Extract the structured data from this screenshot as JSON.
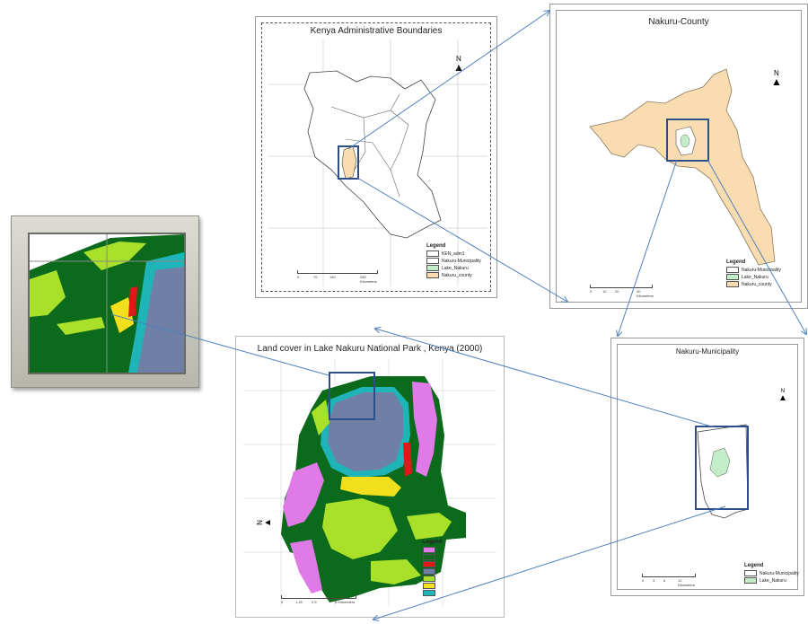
{
  "kenya_map": {
    "title": "Kenya Administrative Boundaries",
    "north": "N",
    "legend_title": "Legend",
    "legend_items": [
      "KEN_adm1",
      "Nakuru-Municipality",
      "Lake_Nakuru",
      "Nakuru_county"
    ],
    "scale_labels": [
      "0",
      "70",
      "140",
      "280 Kilometers"
    ]
  },
  "county_map": {
    "title": "Nakuru-County",
    "north": "N",
    "legend_title": "Legend",
    "legend_items": [
      "Nakuru-Municipality",
      "Lake_Nakuru",
      "Nakuru_county"
    ],
    "scale_labels": [
      "0",
      "10",
      "20",
      "40 Kilometers"
    ]
  },
  "municipality_map": {
    "title": "Nakuru-Municipality",
    "north": "N",
    "legend_title": "Legend",
    "legend_items": [
      "Nakuru-Municipality",
      "Lake_Nakuru"
    ],
    "scale_labels": [
      "0",
      "3",
      "6",
      "12 Kilometers"
    ]
  },
  "landcover_map": {
    "title": "Land cover in Lake Nakuru National Park , Kenya (2000)",
    "north": "N",
    "legend_title": "Legend",
    "scale_labels": [
      "0",
      "1.25",
      "2.5",
      "5 Kilometers"
    ]
  },
  "colors": {
    "county_fill": "#f9dcb0",
    "lake_fill": "#c3ecc9",
    "lake_water": "#6f7fa6",
    "dark_forest": "#0b6a1b",
    "light_green": "#a8e02a",
    "magenta": "#e07ae6",
    "teal": "#1fb5b8",
    "yellow": "#f1e01b",
    "red": "#e01818",
    "box_stroke": "#2d4e86",
    "arrow_stroke": "#4f81bd"
  }
}
